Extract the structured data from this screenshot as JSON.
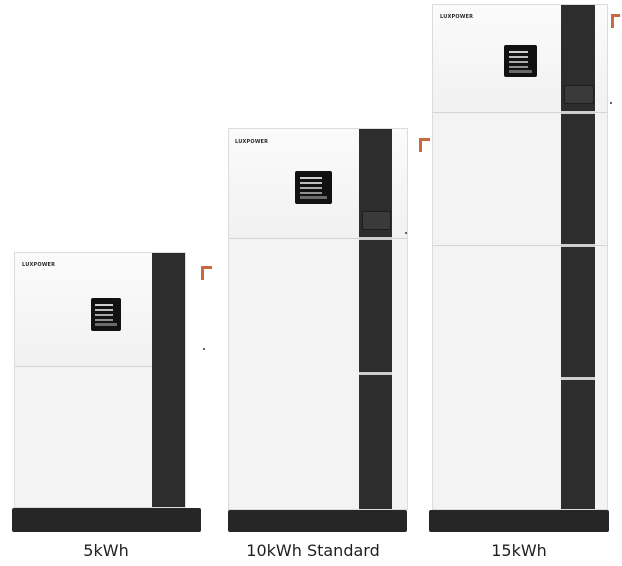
{
  "products": [
    {
      "capacity_label": "5kWh",
      "logo_text": "LUXPOWER"
    },
    {
      "capacity_label": "10kWh Standard",
      "logo_text": "LUXPOWER"
    },
    {
      "capacity_label": "15kWh",
      "logo_text": "LUXPOWER"
    }
  ],
  "colors": {
    "cabinet": "#f3f3f3",
    "stripe": "#2d2d2d",
    "base": "#262626",
    "handle": "#c96a3e",
    "logo_accent": "#6fae3a"
  }
}
